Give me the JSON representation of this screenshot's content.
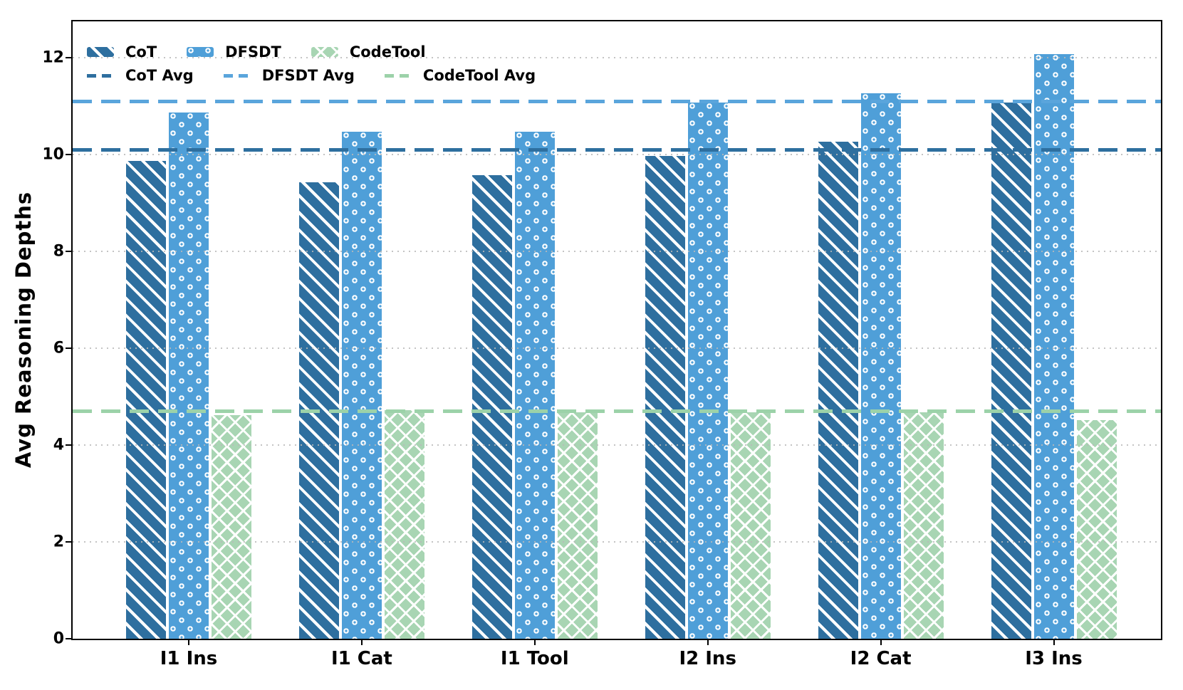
{
  "chart_data": {
    "type": "bar",
    "title": "",
    "ylabel": "Avg Reasoning Depths",
    "xlabel": "",
    "categories": [
      "I1 Ins",
      "I1 Cat",
      "I1 Tool",
      "I2 Ins",
      "I2 Cat",
      "I3 Ins"
    ],
    "series": [
      {
        "name": "CoT",
        "color": "#2e6f9f",
        "hatch": "diagonal",
        "values": [
          9.9,
          9.45,
          9.6,
          10.0,
          10.3,
          11.1
        ]
      },
      {
        "name": "DFSDT",
        "color": "#4f9fd8",
        "hatch": "dots",
        "values": [
          10.9,
          10.5,
          10.5,
          11.1,
          11.3,
          12.1
        ]
      },
      {
        "name": "CodeTool",
        "color": "#a8d5b3",
        "hatch": "cross",
        "values": [
          4.65,
          4.75,
          4.7,
          4.7,
          4.7,
          4.55
        ]
      }
    ],
    "avg_lines": [
      {
        "name": "CoT Avg",
        "value": 10.1,
        "color": "#2e6f9f"
      },
      {
        "name": "DFSDT Avg",
        "value": 11.1,
        "color": "#5aa5dc"
      },
      {
        "name": "CodeTool Avg",
        "value": 4.7,
        "color": "#9cd2a9"
      }
    ],
    "yticks": [
      0,
      2,
      4,
      6,
      8,
      10,
      12
    ],
    "ylim": [
      0,
      12.75
    ],
    "grid": "horizontal-dotted",
    "grid_color": "#b9b9b9",
    "legend_position": "upper-left",
    "axis_color": "#000000"
  }
}
